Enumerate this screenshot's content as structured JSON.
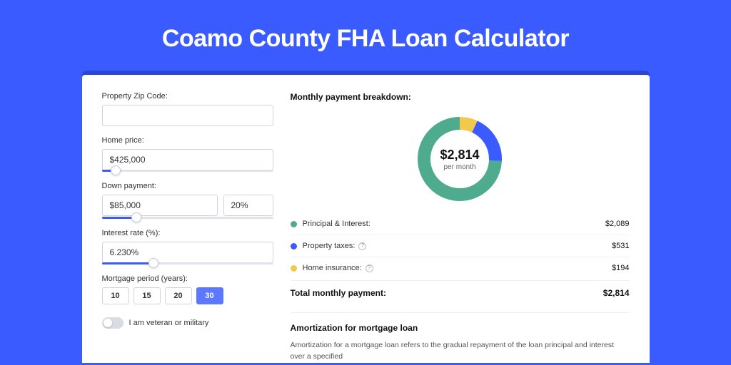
{
  "title": "Coamo County FHA Loan Calculator",
  "colors": {
    "page_bg": "#3a5bff",
    "card_shadow": "#2a47d8",
    "accent": "#3a5bff",
    "border": "#d0d4db",
    "text": "#333333",
    "text_dark": "#111111",
    "muted": "#666666"
  },
  "form": {
    "zip_label": "Property Zip Code:",
    "zip_value": "",
    "home_price_label": "Home price:",
    "home_price_value": "$425,000",
    "home_price_slider_pct": 8,
    "down_payment_label": "Down payment:",
    "down_payment_value": "$85,000",
    "down_payment_pct": "20%",
    "down_payment_slider_pct": 20,
    "interest_label": "Interest rate (%):",
    "interest_value": "6.230%",
    "interest_slider_pct": 30,
    "period_label": "Mortgage period (years):",
    "periods": [
      "10",
      "15",
      "20",
      "30"
    ],
    "period_active_index": 3,
    "veteran_label": "I am veteran or military",
    "veteran_on": false
  },
  "breakdown": {
    "title": "Monthly payment breakdown:",
    "donut": {
      "center_amount": "$2,814",
      "center_sub": "per month",
      "radius": 50,
      "stroke_width": 18,
      "segments": [
        {
          "label": "Principal & Interest:",
          "value": "$2,089",
          "fraction": 0.742,
          "color": "#4fab8d",
          "has_help": false
        },
        {
          "label": "Property taxes:",
          "value": "$531",
          "fraction": 0.189,
          "color": "#3a5bff",
          "has_help": true
        },
        {
          "label": "Home insurance:",
          "value": "$194",
          "fraction": 0.069,
          "color": "#f2c94c",
          "has_help": true
        }
      ]
    },
    "total_label": "Total monthly payment:",
    "total_value": "$2,814"
  },
  "amortization": {
    "title": "Amortization for mortgage loan",
    "text": "Amortization for a mortgage loan refers to the gradual repayment of the loan principal and interest over a specified"
  }
}
